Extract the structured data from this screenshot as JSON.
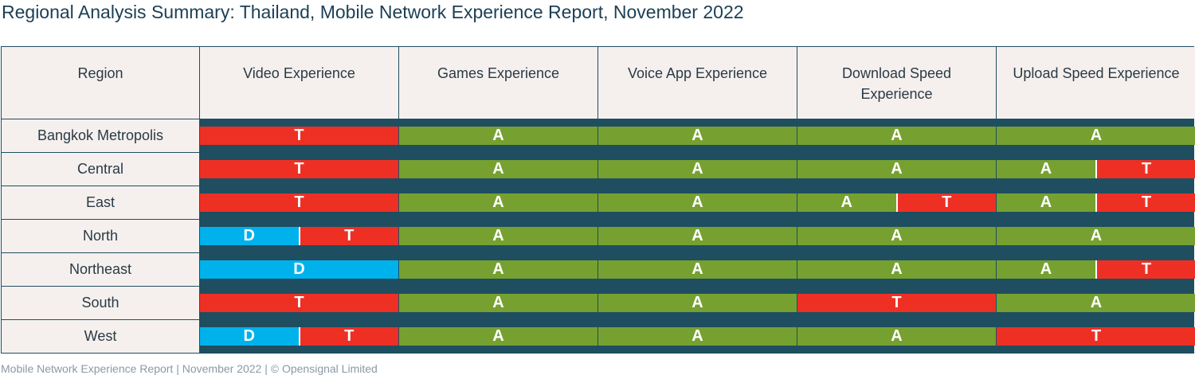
{
  "title": "Regional Analysis Summary: Thailand, Mobile Network Experience Report, November 2022",
  "footer": "Mobile Network Experience Report | November 2022 | © Opensignal Limited",
  "colors": {
    "A": "#76a130",
    "T": "#ee3024",
    "D": "#00b2ec"
  },
  "chart_data": {
    "type": "table",
    "columns": [
      "Region",
      "Video Experience",
      "Games Experience",
      "Voice App Experience",
      "Download Speed Experience",
      "Upload Speed Experience"
    ],
    "rows": [
      {
        "region": "Bangkok Metropolis",
        "cells": [
          [
            "T"
          ],
          [
            "A"
          ],
          [
            "A"
          ],
          [
            "A"
          ],
          [
            "A"
          ]
        ]
      },
      {
        "region": "Central",
        "cells": [
          [
            "T"
          ],
          [
            "A"
          ],
          [
            "A"
          ],
          [
            "A"
          ],
          [
            "A",
            "T"
          ]
        ]
      },
      {
        "region": "East",
        "cells": [
          [
            "T"
          ],
          [
            "A"
          ],
          [
            "A"
          ],
          [
            "A",
            "T"
          ],
          [
            "A",
            "T"
          ]
        ]
      },
      {
        "region": "North",
        "cells": [
          [
            "D",
            "T"
          ],
          [
            "A"
          ],
          [
            "A"
          ],
          [
            "A"
          ],
          [
            "A"
          ]
        ]
      },
      {
        "region": "Northeast",
        "cells": [
          [
            "D"
          ],
          [
            "A"
          ],
          [
            "A"
          ],
          [
            "A"
          ],
          [
            "A",
            "T"
          ]
        ]
      },
      {
        "region": "South",
        "cells": [
          [
            "T"
          ],
          [
            "A"
          ],
          [
            "A"
          ],
          [
            "T"
          ],
          [
            "A"
          ]
        ]
      },
      {
        "region": "West",
        "cells": [
          [
            "D",
            "T"
          ],
          [
            "A"
          ],
          [
            "A"
          ],
          [
            "A"
          ],
          [
            "T"
          ]
        ]
      }
    ]
  }
}
